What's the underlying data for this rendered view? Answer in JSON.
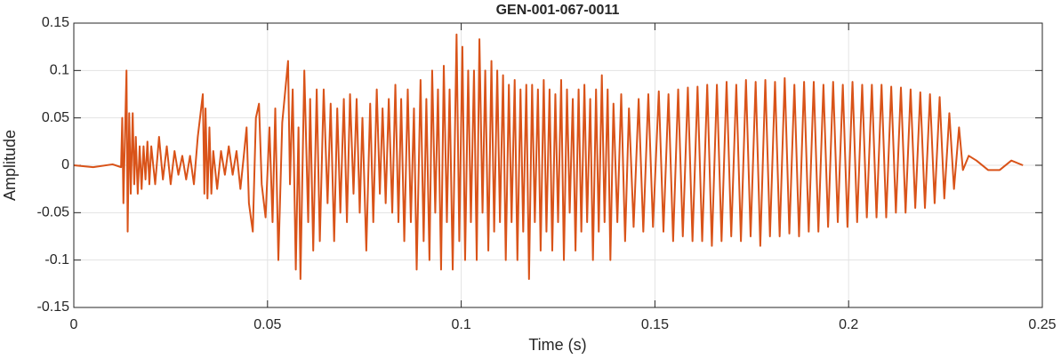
{
  "chart_data": {
    "type": "line",
    "title": "GEN-001-067-0011",
    "xlabel": "Time (s)",
    "ylabel": "Amplitude",
    "color": "#D95319",
    "grid": true,
    "xlim": [
      0,
      0.25
    ],
    "ylim": [
      -0.15,
      0.15
    ],
    "xticks": [
      0,
      0.05,
      0.1,
      0.15,
      0.2,
      0.25
    ],
    "yticks": [
      -0.15,
      -0.1,
      -0.05,
      0,
      0.05,
      0.1,
      0.15
    ],
    "x": [
      0,
      0.005,
      0.01,
      0.0122,
      0.0125,
      0.0128,
      0.0132,
      0.0136,
      0.0139,
      0.0143,
      0.0147,
      0.0152,
      0.0156,
      0.016,
      0.0165,
      0.017,
      0.0175,
      0.018,
      0.0185,
      0.019,
      0.0195,
      0.02,
      0.021,
      0.022,
      0.023,
      0.024,
      0.025,
      0.026,
      0.027,
      0.028,
      0.029,
      0.03,
      0.031,
      0.032,
      0.0333,
      0.0337,
      0.034,
      0.0345,
      0.035,
      0.0355,
      0.036,
      0.037,
      0.038,
      0.039,
      0.04,
      0.041,
      0.042,
      0.043,
      0.044,
      0.0446,
      0.0452,
      0.0462,
      0.047,
      0.0478,
      0.0485,
      0.0495,
      0.0505,
      0.0513,
      0.052,
      0.0528,
      0.0538,
      0.0553,
      0.0558,
      0.0565,
      0.0573,
      0.058,
      0.0585,
      0.0595,
      0.0605,
      0.061,
      0.0618,
      0.0627,
      0.0635,
      0.0645,
      0.0655,
      0.0663,
      0.0672,
      0.068,
      0.0688,
      0.0697,
      0.0705,
      0.0713,
      0.0722,
      0.073,
      0.0738,
      0.0745,
      0.0755,
      0.0765,
      0.0773,
      0.0782,
      0.079,
      0.0797,
      0.0805,
      0.0813,
      0.0822,
      0.083,
      0.0838,
      0.0845,
      0.0853,
      0.0862,
      0.087,
      0.0878,
      0.0885,
      0.0895,
      0.0903,
      0.091,
      0.0918,
      0.0925,
      0.0933,
      0.094,
      0.0948,
      0.0955,
      0.0963,
      0.097,
      0.0978,
      0.0988,
      0.0995,
      0.1003,
      0.101,
      0.1018,
      0.1025,
      0.1033,
      0.104,
      0.1047,
      0.1055,
      0.1062,
      0.107,
      0.1078,
      0.1085,
      0.1093,
      0.11,
      0.1108,
      0.1115,
      0.1123,
      0.113,
      0.1138,
      0.1145,
      0.1153,
      0.116,
      0.1168,
      0.1175,
      0.1183,
      0.119,
      0.1198,
      0.1205,
      0.1213,
      0.122,
      0.1228,
      0.1235,
      0.1243,
      0.125,
      0.1258,
      0.1265,
      0.1273,
      0.128,
      0.1288,
      0.1295,
      0.1303,
      0.131,
      0.1318,
      0.1325,
      0.1333,
      0.134,
      0.1348,
      0.1355,
      0.1363,
      0.137,
      0.1378,
      0.1385,
      0.1393,
      0.1403,
      0.1413,
      0.1423,
      0.1433,
      0.1445,
      0.1458,
      0.147,
      0.1483,
      0.1495,
      0.151,
      0.1522,
      0.1535,
      0.1547,
      0.156,
      0.1572,
      0.1585,
      0.1597,
      0.161,
      0.1622,
      0.1635,
      0.1647,
      0.166,
      0.1672,
      0.1685,
      0.1697,
      0.171,
      0.1722,
      0.1735,
      0.1747,
      0.176,
      0.1772,
      0.1785,
      0.1797,
      0.181,
      0.1822,
      0.1835,
      0.1847,
      0.186,
      0.1872,
      0.1885,
      0.1897,
      0.191,
      0.1922,
      0.1935,
      0.1947,
      0.196,
      0.1972,
      0.1985,
      0.1997,
      0.201,
      0.2022,
      0.2035,
      0.2047,
      0.206,
      0.2072,
      0.2085,
      0.2097,
      0.211,
      0.2122,
      0.2135,
      0.2147,
      0.216,
      0.2172,
      0.2185,
      0.2197,
      0.221,
      0.2222,
      0.2235,
      0.2247,
      0.226,
      0.2272,
      0.2285,
      0.2295,
      0.231,
      0.233,
      0.236,
      0.239,
      0.242,
      0.245
    ],
    "values": [
      0,
      -0.002,
      0.001,
      -0.002,
      0.05,
      -0.04,
      0.03,
      0.1,
      -0.07,
      0.055,
      -0.03,
      0.055,
      -0.02,
      0.03,
      -0.03,
      0.02,
      -0.025,
      0.02,
      -0.015,
      0.025,
      -0.02,
      0.02,
      -0.02,
      0.03,
      -0.015,
      0.02,
      -0.02,
      0.015,
      -0.01,
      0.01,
      -0.015,
      0.01,
      -0.02,
      0.03,
      0.075,
      -0.03,
      0.06,
      -0.035,
      0.04,
      -0.03,
      0.015,
      -0.025,
      0.015,
      -0.01,
      0.02,
      -0.01,
      0.015,
      -0.025,
      0.015,
      0.04,
      -0.04,
      -0.07,
      0.05,
      0.065,
      -0.02,
      -0.055,
      0.04,
      -0.06,
      0.06,
      -0.1,
      0.045,
      0.11,
      -0.02,
      0.08,
      -0.11,
      0.04,
      -0.12,
      0.1,
      -0.06,
      0.07,
      -0.09,
      0.08,
      -0.08,
      0.08,
      -0.04,
      0.065,
      -0.08,
      0.06,
      -0.05,
      0.07,
      -0.06,
      0.075,
      -0.03,
      0.07,
      -0.05,
      0.05,
      -0.09,
      0.065,
      -0.06,
      0.08,
      -0.03,
      0.06,
      -0.04,
      0.07,
      -0.05,
      0.085,
      -0.06,
      0.07,
      -0.08,
      0.08,
      -0.06,
      0.06,
      -0.11,
      0.09,
      -0.08,
      0.07,
      -0.1,
      0.1,
      -0.05,
      0.08,
      -0.11,
      0.105,
      -0.06,
      0.08,
      -0.11,
      0.138,
      -0.08,
      0.125,
      -0.1,
      0.1,
      -0.06,
      0.1,
      -0.1,
      0.133,
      -0.05,
      0.1,
      -0.09,
      0.11,
      -0.07,
      0.1,
      -0.06,
      0.095,
      -0.1,
      0.085,
      -0.06,
      0.09,
      -0.1,
      0.08,
      -0.07,
      0.085,
      -0.12,
      0.085,
      -0.06,
      0.08,
      -0.09,
      0.09,
      -0.07,
      0.08,
      -0.09,
      0.075,
      -0.06,
      0.09,
      -0.1,
      0.08,
      -0.05,
      0.07,
      -0.09,
      0.08,
      -0.07,
      0.085,
      -0.06,
      0.07,
      -0.1,
      0.08,
      -0.07,
      0.095,
      -0.06,
      0.08,
      -0.1,
      0.065,
      -0.06,
      0.075,
      -0.08,
      0.06,
      -0.065,
      0.07,
      -0.07,
      0.075,
      -0.065,
      0.078,
      -0.07,
      0.075,
      -0.08,
      0.08,
      -0.075,
      0.082,
      -0.08,
      0.083,
      -0.08,
      0.085,
      -0.085,
      0.085,
      -0.08,
      0.088,
      -0.075,
      0.085,
      -0.08,
      0.09,
      -0.075,
      0.088,
      -0.085,
      0.09,
      -0.075,
      0.088,
      -0.075,
      0.092,
      -0.072,
      0.085,
      -0.075,
      0.088,
      -0.07,
      0.088,
      -0.07,
      0.085,
      -0.065,
      0.088,
      -0.06,
      0.085,
      -0.065,
      0.088,
      -0.06,
      0.085,
      -0.055,
      0.085,
      -0.055,
      0.085,
      -0.055,
      0.083,
      -0.05,
      0.082,
      -0.05,
      0.08,
      -0.045,
      0.077,
      -0.045,
      0.075,
      -0.04,
      0.072,
      -0.035,
      0.055,
      -0.025,
      0.04,
      -0.005,
      0.01,
      0.005,
      -0.005,
      -0.005,
      0.005,
      0
    ]
  }
}
